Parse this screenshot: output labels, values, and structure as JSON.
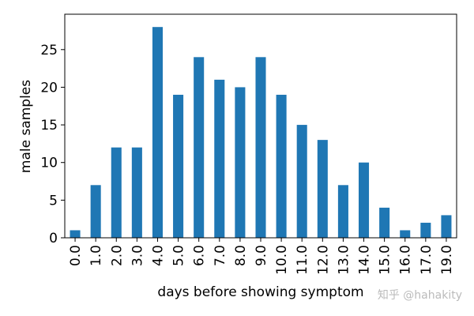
{
  "chart_data": {
    "type": "bar",
    "xlabel": "days before showing symptom",
    "ylabel": "male samples",
    "watermark": "知乎 @hahakity",
    "categories": [
      "0.0",
      "1.0",
      "2.0",
      "3.0",
      "4.0",
      "5.0",
      "6.0",
      "7.0",
      "8.0",
      "9.0",
      "10.0",
      "11.0",
      "12.0",
      "13.0",
      "14.0",
      "15.0",
      "16.0",
      "17.0",
      "19.0"
    ],
    "values": [
      1,
      7,
      12,
      12,
      28,
      19,
      24,
      21,
      20,
      24,
      19,
      15,
      13,
      7,
      10,
      4,
      1,
      2,
      3
    ],
    "color": "#1f77b4",
    "ylim": [
      0,
      29.7
    ],
    "yticks": [
      0,
      5,
      10,
      15,
      20,
      25
    ],
    "grid": false
  }
}
